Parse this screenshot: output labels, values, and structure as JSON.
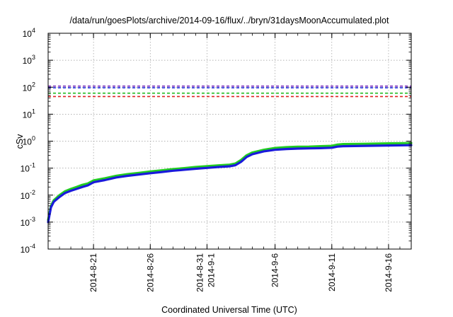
{
  "chart_data": {
    "type": "line",
    "title": "/data/run/goesPlots/archive/2014-09-16/flux/../bryn/31daysMoonAccumulated.plot",
    "xlabel": "Coordinated Universal Time (UTC)",
    "ylabel": "cSv",
    "y_scale": "log",
    "ylim": [
      0.0001,
      10000
    ],
    "xlim": [
      "2014-08-17T00:00",
      "2014-09-18T00:00"
    ],
    "grid": true,
    "y_ticks": [
      {
        "base": "10",
        "exp": "-4",
        "value": 0.0001
      },
      {
        "base": "10",
        "exp": "-3",
        "value": 0.001
      },
      {
        "base": "10",
        "exp": "-2",
        "value": 0.01
      },
      {
        "base": "10",
        "exp": "-1",
        "value": 0.1
      },
      {
        "base": "10",
        "exp": "0",
        "value": 1
      },
      {
        "base": "10",
        "exp": "1",
        "value": 10
      },
      {
        "base": "10",
        "exp": "2",
        "value": 100
      },
      {
        "base": "10",
        "exp": "3",
        "value": 1000
      },
      {
        "base": "10",
        "exp": "4",
        "value": 10000
      }
    ],
    "x_ticks": [
      {
        "date": "2014-08-21",
        "label": "2014-8-21",
        "sublabel": ""
      },
      {
        "date": "2014-08-26",
        "label": "2014-8-26",
        "sublabel": ""
      },
      {
        "date": "2014-08-31",
        "label": "2014-8-31",
        "sublabel": "2014-9-1"
      },
      {
        "date": "2014-09-06",
        "label": "2014-9-6",
        "sublabel": ""
      },
      {
        "date": "2014-09-11",
        "label": "2014-9-11",
        "sublabel": ""
      },
      {
        "date": "2014-09-16",
        "label": "2014-9-16",
        "sublabel": ""
      }
    ],
    "reference_lines": [
      {
        "value": 110,
        "color": "#7b2fbe"
      },
      {
        "value": 95,
        "color": "#2233dd"
      },
      {
        "value": 60,
        "color": "#22bb22"
      },
      {
        "value": 45,
        "color": "#dd2222"
      }
    ],
    "series": [
      {
        "color": "#22cc22",
        "points": [
          [
            "2014-08-17T00:00",
            0.0012
          ],
          [
            "2014-08-17T06:00",
            0.004
          ],
          [
            "2014-08-17T12:00",
            0.0065
          ],
          [
            "2014-08-18T00:00",
            0.01
          ],
          [
            "2014-08-18T12:00",
            0.014
          ],
          [
            "2014-08-19T00:00",
            0.017
          ],
          [
            "2014-08-19T12:00",
            0.02
          ],
          [
            "2014-08-20T00:00",
            0.024
          ],
          [
            "2014-08-20T12:00",
            0.027
          ],
          [
            "2014-08-21T00:00",
            0.035
          ],
          [
            "2014-08-22T00:00",
            0.042
          ],
          [
            "2014-08-23T00:00",
            0.052
          ],
          [
            "2014-08-24T00:00",
            0.06
          ],
          [
            "2014-08-25T00:00",
            0.067
          ],
          [
            "2014-08-26T00:00",
            0.075
          ],
          [
            "2014-08-27T00:00",
            0.083
          ],
          [
            "2014-08-28T00:00",
            0.092
          ],
          [
            "2014-08-29T00:00",
            0.1
          ],
          [
            "2014-08-30T00:00",
            0.11
          ],
          [
            "2014-08-31T00:00",
            0.118
          ],
          [
            "2014-09-01T00:00",
            0.127
          ],
          [
            "2014-09-02T00:00",
            0.135
          ],
          [
            "2014-09-02T12:00",
            0.148
          ],
          [
            "2014-09-03T00:00",
            0.2
          ],
          [
            "2014-09-03T12:00",
            0.3
          ],
          [
            "2014-09-04T00:00",
            0.38
          ],
          [
            "2014-09-05T00:00",
            0.48
          ],
          [
            "2014-09-06T00:00",
            0.56
          ],
          [
            "2014-09-07T00:00",
            0.6
          ],
          [
            "2014-09-08T00:00",
            0.62
          ],
          [
            "2014-09-09T00:00",
            0.63
          ],
          [
            "2014-09-10T00:00",
            0.65
          ],
          [
            "2014-09-11T00:00",
            0.67
          ],
          [
            "2014-09-11T12:00",
            0.75
          ],
          [
            "2014-09-12T00:00",
            0.78
          ],
          [
            "2014-09-14T00:00",
            0.8
          ],
          [
            "2014-09-16T00:00",
            0.83
          ],
          [
            "2014-09-18T00:00",
            0.85
          ]
        ]
      },
      {
        "color": "#1a1adb",
        "points": [
          [
            "2014-08-17T00:00",
            0.001
          ],
          [
            "2014-08-17T06:00",
            0.0035
          ],
          [
            "2014-08-17T12:00",
            0.0057
          ],
          [
            "2014-08-18T00:00",
            0.0085
          ],
          [
            "2014-08-18T12:00",
            0.012
          ],
          [
            "2014-08-19T00:00",
            0.0145
          ],
          [
            "2014-08-19T12:00",
            0.017
          ],
          [
            "2014-08-20T00:00",
            0.02
          ],
          [
            "2014-08-20T12:00",
            0.023
          ],
          [
            "2014-08-21T00:00",
            0.03
          ],
          [
            "2014-08-22T00:00",
            0.036
          ],
          [
            "2014-08-23T00:00",
            0.045
          ],
          [
            "2014-08-24T00:00",
            0.052
          ],
          [
            "2014-08-25T00:00",
            0.058
          ],
          [
            "2014-08-26T00:00",
            0.065
          ],
          [
            "2014-08-27T00:00",
            0.072
          ],
          [
            "2014-08-28T00:00",
            0.08
          ],
          [
            "2014-08-29T00:00",
            0.087
          ],
          [
            "2014-08-30T00:00",
            0.095
          ],
          [
            "2014-08-31T00:00",
            0.102
          ],
          [
            "2014-09-01T00:00",
            0.11
          ],
          [
            "2014-09-02T00:00",
            0.117
          ],
          [
            "2014-09-02T12:00",
            0.128
          ],
          [
            "2014-09-03T00:00",
            0.17
          ],
          [
            "2014-09-03T12:00",
            0.26
          ],
          [
            "2014-09-04T00:00",
            0.33
          ],
          [
            "2014-09-05T00:00",
            0.42
          ],
          [
            "2014-09-06T00:00",
            0.48
          ],
          [
            "2014-09-07T00:00",
            0.51
          ],
          [
            "2014-09-08T00:00",
            0.53
          ],
          [
            "2014-09-09T00:00",
            0.54
          ],
          [
            "2014-09-10T00:00",
            0.55
          ],
          [
            "2014-09-11T00:00",
            0.57
          ],
          [
            "2014-09-11T12:00",
            0.63
          ],
          [
            "2014-09-12T00:00",
            0.65
          ],
          [
            "2014-09-14T00:00",
            0.67
          ],
          [
            "2014-09-16T00:00",
            0.69
          ],
          [
            "2014-09-18T00:00",
            0.71
          ]
        ]
      }
    ]
  }
}
